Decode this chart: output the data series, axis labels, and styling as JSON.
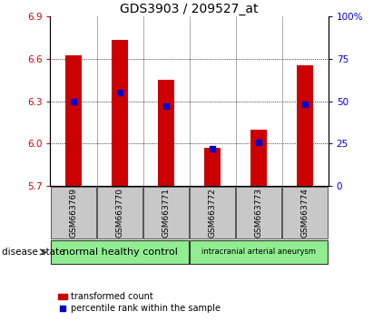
{
  "title": "GDS3903 / 209527_at",
  "samples": [
    "GSM663769",
    "GSM663770",
    "GSM663771",
    "GSM663772",
    "GSM663773",
    "GSM663774"
  ],
  "transformed_count": [
    6.62,
    6.73,
    6.45,
    5.97,
    6.1,
    6.55
  ],
  "percentile_rank": [
    50,
    55,
    47,
    22,
    26,
    48
  ],
  "ylim_left": [
    5.7,
    6.9
  ],
  "ylim_right": [
    0,
    100
  ],
  "yticks_left": [
    5.7,
    6.0,
    6.3,
    6.6,
    6.9
  ],
  "yticks_right": [
    0,
    25,
    50,
    75,
    100
  ],
  "ytick_labels_right": [
    "0",
    "25",
    "50",
    "75",
    "100%"
  ],
  "bar_color": "#cc0000",
  "marker_color": "#0000cc",
  "baseline": 5.7,
  "group1_label": "normal healthy control",
  "group2_label": "intracranial arterial aneurysm",
  "group1_color": "#90ee90",
  "group2_color": "#90ee90",
  "xticklabel_bg": "#c8c8c8",
  "disease_state_label": "disease state",
  "legend_bar_label": "transformed count",
  "legend_marker_label": "percentile rank within the sample",
  "title_fontsize": 10,
  "tick_fontsize": 7.5,
  "bar_width": 0.35
}
